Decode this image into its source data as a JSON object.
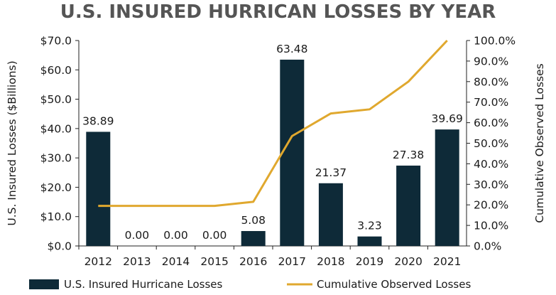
{
  "chart_data": {
    "type": "bar",
    "title": "U.S. INSURED HURRICAN LOSSES BY YEAR",
    "categories": [
      "2012",
      "2013",
      "2014",
      "2015",
      "2016",
      "2017",
      "2018",
      "2019",
      "2020",
      "2021"
    ],
    "series": [
      {
        "name": "U.S. Insured Hurricane Losses",
        "type": "bar",
        "axis": "left",
        "color": "#0e2a38",
        "values": [
          38.89,
          0.0,
          0.0,
          0.0,
          5.08,
          63.48,
          21.37,
          3.23,
          27.38,
          39.69
        ],
        "data_labels": [
          "38.89",
          "0.00",
          "0.00",
          "0.00",
          "5.08",
          "63.48",
          "21.37",
          "3.23",
          "27.38",
          "39.69"
        ]
      },
      {
        "name": "Cumulative Observed Losses",
        "type": "line",
        "axis": "right",
        "color": "#e0a82e",
        "values": [
          19.5,
          19.5,
          19.5,
          19.5,
          21.5,
          53.5,
          64.5,
          66.5,
          80.0,
          100.0
        ]
      }
    ],
    "ylabel": "U.S. Insured Losses ($Billions)",
    "ylabel_right": "Cumulative Observed Losses",
    "ylim": [
      0,
      70
    ],
    "ylim_right": [
      0,
      100
    ],
    "yticks": [
      "$0.0",
      "$10.0",
      "$20.0",
      "$30.0",
      "$40.0",
      "$50.0",
      "$60.0",
      "$70.0"
    ],
    "yticks_right": [
      "0.0%",
      "10.0%",
      "20.0%",
      "30.0%",
      "40.0%",
      "50.0%",
      "60.0%",
      "70.0%",
      "80.0%",
      "90.0%",
      "100.0%"
    ],
    "legend_position": "bottom",
    "grid": false
  }
}
